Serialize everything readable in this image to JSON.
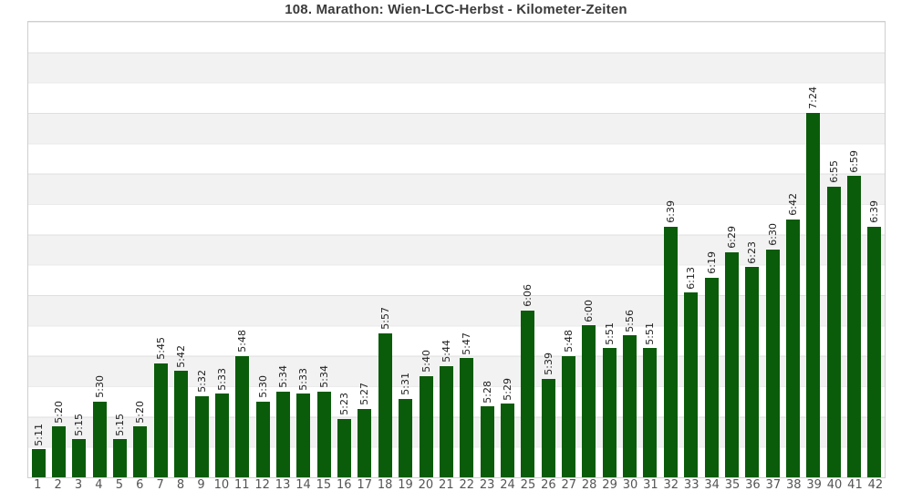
{
  "title": "108. Marathon: Wien-LCC-Herbst - Kilometer-Zeiten",
  "chart_data": {
    "type": "bar",
    "title": "108. Marathon: Wien-LCC-Herbst - Kilometer-Zeiten",
    "xlabel": "",
    "ylabel": "",
    "legend": "none",
    "grid": "horizontal-bands",
    "categories": [
      "1",
      "2",
      "3",
      "4",
      "5",
      "6",
      "7",
      "8",
      "9",
      "10",
      "11",
      "12",
      "13",
      "14",
      "15",
      "16",
      "17",
      "18",
      "19",
      "20",
      "21",
      "22",
      "23",
      "24",
      "25",
      "26",
      "27",
      "28",
      "29",
      "30",
      "31",
      "32",
      "33",
      "34",
      "35",
      "36",
      "37",
      "38",
      "39",
      "40",
      "41",
      "42"
    ],
    "value_labels": [
      "5:11",
      "5:20",
      "5:15",
      "5:30",
      "5:15",
      "5:20",
      "5:45",
      "5:42",
      "5:32",
      "5:33",
      "5:48",
      "5:30",
      "5:34",
      "5:33",
      "5:34",
      "5:23",
      "5:27",
      "5:57",
      "5:31",
      "5:40",
      "5:44",
      "5:47",
      "5:28",
      "5:29",
      "6:06",
      "5:39",
      "5:48",
      "6:00",
      "5:51",
      "5:56",
      "5:51",
      "6:39",
      "6:13",
      "6:19",
      "6:29",
      "6:23",
      "6:30",
      "6:42",
      "7:24",
      "6:55",
      "6:59",
      "6:39"
    ],
    "values_seconds": [
      311,
      320,
      315,
      330,
      315,
      320,
      345,
      342,
      332,
      333,
      348,
      330,
      334,
      333,
      334,
      323,
      327,
      357,
      331,
      340,
      344,
      347,
      328,
      329,
      366,
      339,
      348,
      360,
      351,
      356,
      351,
      399,
      373,
      379,
      389,
      383,
      390,
      402,
      444,
      415,
      419,
      399
    ],
    "ylim_seconds": [
      300,
      480
    ],
    "gridline_interval_seconds": 12,
    "bar_color": "#0a5c0a",
    "band_color": "#f2f2f2",
    "band_alt_color": "#ffffff"
  }
}
